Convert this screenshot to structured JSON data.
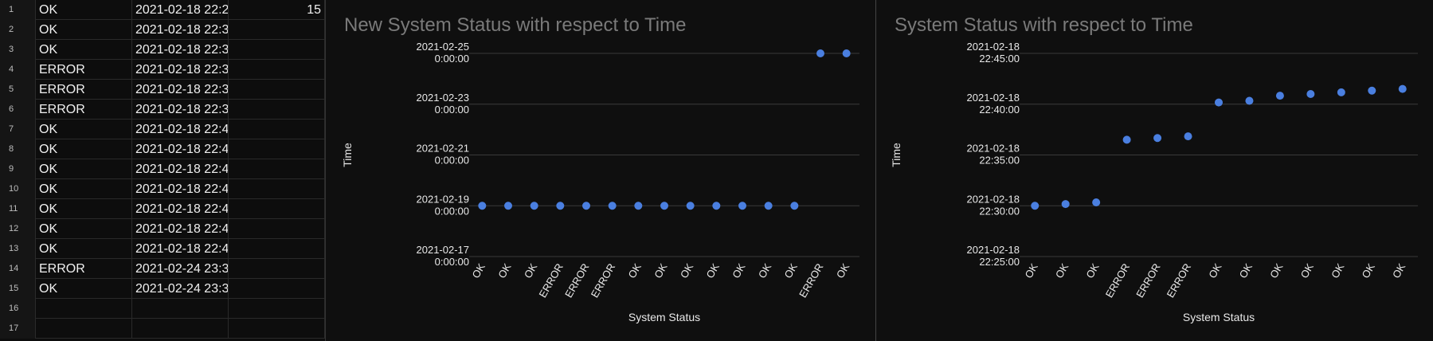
{
  "sheet": {
    "rows": [
      {
        "n": "1",
        "a": "OK",
        "b": "2021-02-18 22:2",
        "c": "15"
      },
      {
        "n": "2",
        "a": "OK",
        "b": "2021-02-18 22:3",
        "c": ""
      },
      {
        "n": "3",
        "a": "OK",
        "b": "2021-02-18 22:3",
        "c": ""
      },
      {
        "n": "4",
        "a": "ERROR",
        "b": "2021-02-18 22:3",
        "c": ""
      },
      {
        "n": "5",
        "a": "ERROR",
        "b": "2021-02-18 22:3",
        "c": ""
      },
      {
        "n": "6",
        "a": "ERROR",
        "b": "2021-02-18 22:3",
        "c": ""
      },
      {
        "n": "7",
        "a": "OK",
        "b": "2021-02-18 22:4",
        "c": ""
      },
      {
        "n": "8",
        "a": "OK",
        "b": "2021-02-18 22:4",
        "c": ""
      },
      {
        "n": "9",
        "a": "OK",
        "b": "2021-02-18 22:4",
        "c": ""
      },
      {
        "n": "10",
        "a": "OK",
        "b": "2021-02-18 22:4",
        "c": ""
      },
      {
        "n": "11",
        "a": "OK",
        "b": "2021-02-18 22:4",
        "c": ""
      },
      {
        "n": "12",
        "a": "OK",
        "b": "2021-02-18 22:4",
        "c": ""
      },
      {
        "n": "13",
        "a": "OK",
        "b": "2021-02-18 22:4",
        "c": ""
      },
      {
        "n": "14",
        "a": "ERROR",
        "b": "2021-02-24 23:3",
        "c": ""
      },
      {
        "n": "15",
        "a": "OK",
        "b": "2021-02-24 23:3",
        "c": ""
      },
      {
        "n": "16",
        "a": "",
        "b": "",
        "c": ""
      },
      {
        "n": "17",
        "a": "",
        "b": "",
        "c": ""
      }
    ]
  },
  "colors": {
    "point": "#4a7fe0",
    "grid": "#3a3a3a",
    "title": "#7a7a7a",
    "label": "#e8e8e8"
  },
  "chart_data": [
    {
      "type": "scatter",
      "title": "New System Status with respect to Time",
      "xlabel": "System Status",
      "ylabel": "Time",
      "categories": [
        "OK",
        "OK",
        "OK",
        "ERROR",
        "ERROR",
        "ERROR",
        "OK",
        "OK",
        "OK",
        "OK",
        "OK",
        "OK",
        "OK",
        "ERROR",
        "OK"
      ],
      "y_ticks": [
        [
          "2021-02-25",
          "0:00:00"
        ],
        [
          "2021-02-23",
          "0:00:00"
        ],
        [
          "2021-02-21",
          "0:00:00"
        ],
        [
          "2021-02-19",
          "0:00:00"
        ],
        [
          "2021-02-17",
          "0:00:00"
        ]
      ],
      "ylim": [
        "2021-02-17 00:00:00",
        "2021-02-25 00:00:00"
      ],
      "values": [
        "2021-02-19 00:00:00",
        "2021-02-19 00:00:00",
        "2021-02-19 00:00:00",
        "2021-02-19 00:00:00",
        "2021-02-19 00:00:00",
        "2021-02-19 00:00:00",
        "2021-02-19 00:00:00",
        "2021-02-19 00:00:00",
        "2021-02-19 00:00:00",
        "2021-02-19 00:00:00",
        "2021-02-19 00:00:00",
        "2021-02-19 00:00:00",
        "2021-02-19 00:00:00",
        "2021-02-25 00:00:00",
        "2021-02-25 00:00:00"
      ],
      "grid": true
    },
    {
      "type": "scatter",
      "title": "System Status with respect to Time",
      "xlabel": "System Status",
      "ylabel": "Time",
      "categories": [
        "OK",
        "OK",
        "OK",
        "ERROR",
        "ERROR",
        "ERROR",
        "OK",
        "OK",
        "OK",
        "OK",
        "OK",
        "OK",
        "OK"
      ],
      "y_ticks": [
        [
          "2021-02-18",
          "22:45:00"
        ],
        [
          "2021-02-18",
          "22:40:00"
        ],
        [
          "2021-02-18",
          "22:35:00"
        ],
        [
          "2021-02-18",
          "22:30:00"
        ],
        [
          "2021-02-18",
          "22:25:00"
        ]
      ],
      "ylim": [
        "2021-02-18 22:25:00",
        "2021-02-18 22:45:00"
      ],
      "values": [
        "2021-02-18 22:30:00",
        "2021-02-18 22:30:10",
        "2021-02-18 22:30:20",
        "2021-02-18 22:36:30",
        "2021-02-18 22:36:40",
        "2021-02-18 22:36:50",
        "2021-02-18 22:40:10",
        "2021-02-18 22:40:20",
        "2021-02-18 22:40:50",
        "2021-02-18 22:41:00",
        "2021-02-18 22:41:10",
        "2021-02-18 22:41:20",
        "2021-02-18 22:41:30"
      ],
      "grid": true
    }
  ]
}
